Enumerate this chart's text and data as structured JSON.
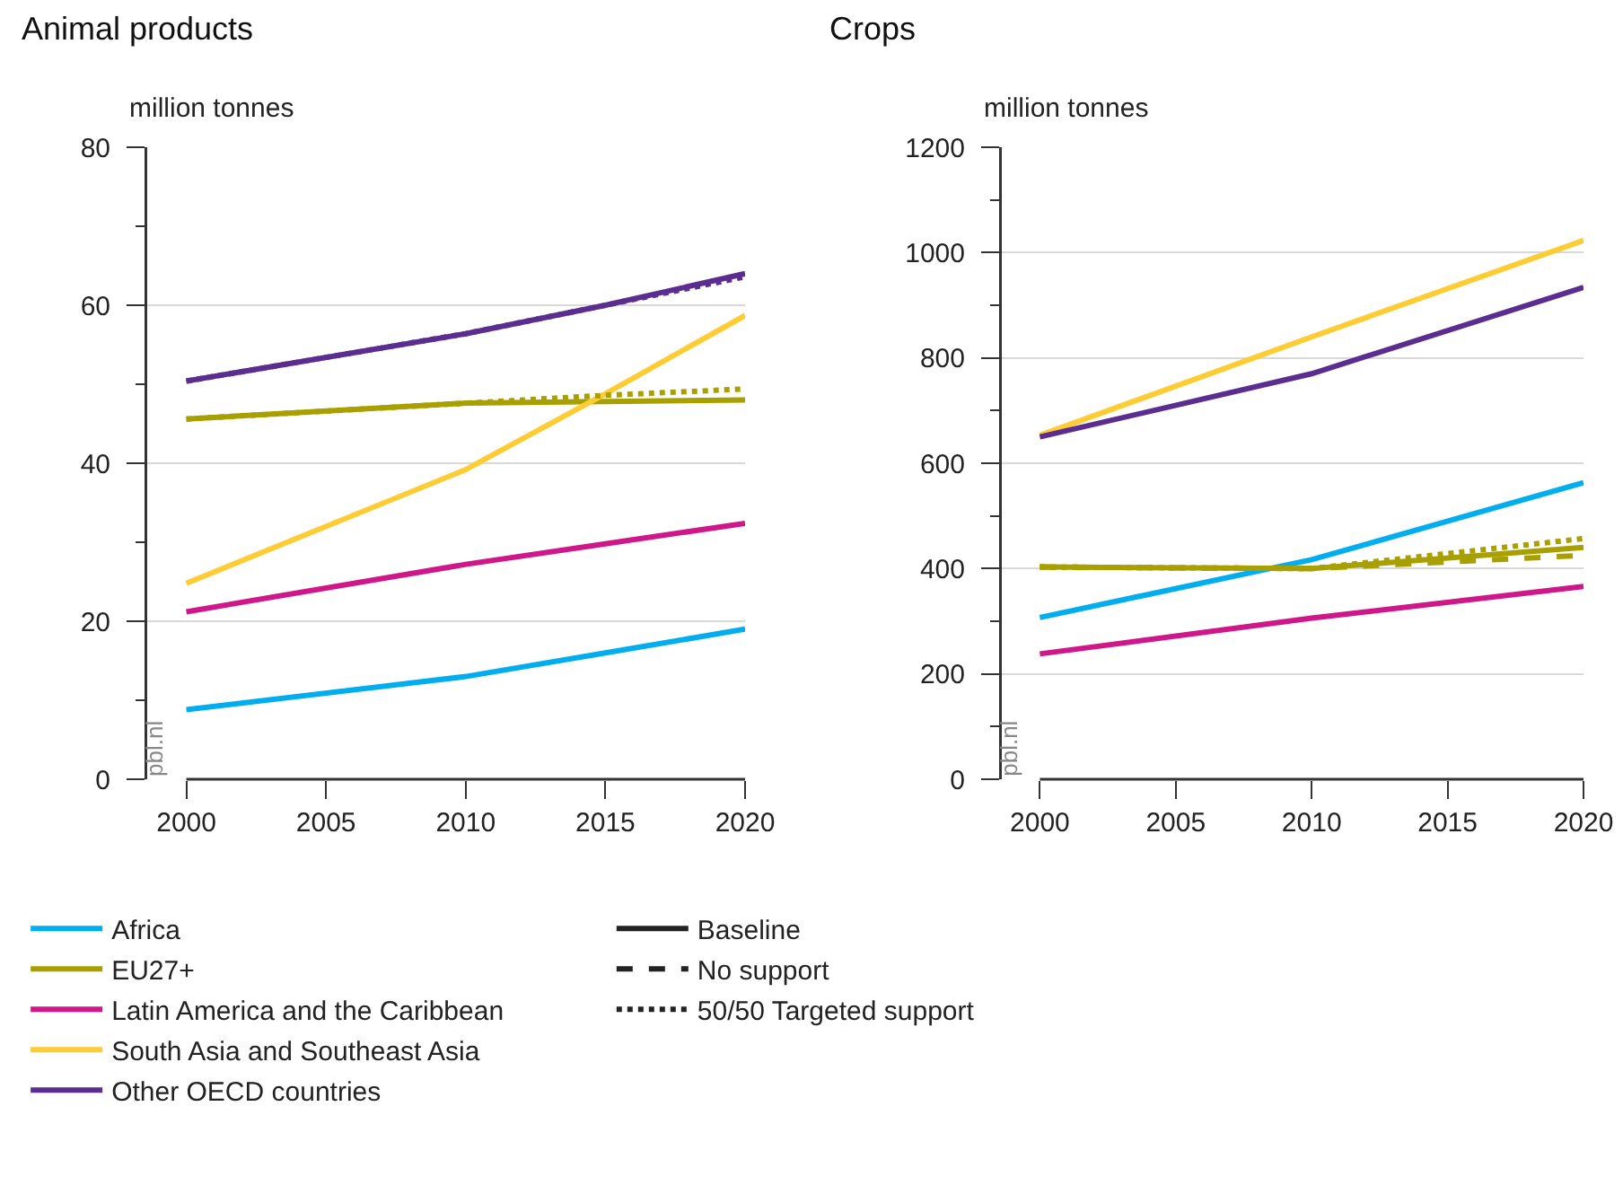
{
  "chart_data": [
    {
      "type": "line",
      "title": "Animal products",
      "ylabel": "million tonnes",
      "x": [
        2000,
        2010,
        2015,
        2020
      ],
      "xlim": [
        1998.6,
        2020
      ],
      "xticks": [
        2000,
        2005,
        2010,
        2015,
        2020
      ],
      "ylim": [
        0,
        80
      ],
      "yticks": [
        0,
        {
          "value": 10,
          "label": null
        },
        20,
        {
          "value": 30,
          "label": null
        },
        40,
        {
          "value": 50,
          "label": null
        },
        60,
        {
          "value": 70,
          "label": null
        },
        80
      ],
      "grid": "y",
      "legend": "bottom",
      "marker": "none",
      "annotations": [
        "pbl.nl"
      ],
      "series": [
        {
          "name": "Africa",
          "color": "#00aeef",
          "line_style": "solid",
          "values": [
            8.8,
            13,
            16,
            19
          ]
        },
        {
          "name": "EU27+",
          "color": "#a8a000",
          "line_style": "solid",
          "values": [
            45.6,
            47.6,
            47.8,
            48
          ]
        },
        {
          "name": "Latin America and the Caribbean",
          "color": "#d0178a",
          "line_style": "solid",
          "values": [
            21.2,
            27.2,
            29.8,
            32.4
          ]
        },
        {
          "name": "South Asia and Southeast Asia",
          "color": "#ffcc33",
          "line_style": "solid",
          "values": [
            24.8,
            39.2,
            48.8,
            58.7
          ]
        },
        {
          "name": "Other OECD countries",
          "color": "#5c2d91",
          "line_style": "solid",
          "values": [
            50.4,
            56.4,
            60,
            64
          ]
        },
        {
          "color": "#a8a000",
          "line_style": "dotted",
          "values": [
            45.6,
            47.6,
            48.6,
            49.4
          ]
        },
        {
          "color": "#5c2d91",
          "line_style": "dotted",
          "values": [
            50.4,
            56.4,
            60,
            63.6
          ]
        },
        {
          "name": "Baseline",
          "color": "#222222",
          "line_style": "solid",
          "values": [
            null,
            null,
            null,
            null
          ]
        },
        {
          "name": "No support",
          "color": "#222222",
          "line_style": "dashed",
          "values": [
            null,
            null,
            null,
            null
          ]
        },
        {
          "name": "50/50 Targeted support",
          "color": "#222222",
          "line_style": "dotted",
          "values": [
            null,
            null,
            null,
            null
          ]
        }
      ]
    },
    {
      "type": "line",
      "title": "Crops",
      "ylabel": "million tonnes",
      "x": [
        2000,
        2010,
        2020
      ],
      "xlim": [
        1998.6,
        2020
      ],
      "xticks": [
        2000,
        2005,
        2010,
        2015,
        2020
      ],
      "ylim": [
        0,
        1200
      ],
      "yticks": [
        0,
        {
          "value": 100,
          "label": null
        },
        200,
        {
          "value": 300,
          "label": null
        },
        400,
        {
          "value": 500,
          "label": null
        },
        600,
        {
          "value": 700,
          "label": null
        },
        800,
        {
          "value": 900,
          "label": null
        },
        1000,
        {
          "value": 1100,
          "label": null
        },
        1200
      ],
      "grid": "y",
      "marker": "none",
      "annotations": [
        "pbl.nl"
      ],
      "series": [
        {
          "color": "#00aeef",
          "line_style": "solid",
          "values": [
            307,
            417,
            563
          ]
        },
        {
          "color": "#a8a000",
          "line_style": "solid",
          "values": [
            403,
            400,
            440
          ]
        },
        {
          "color": "#d0178a",
          "line_style": "solid",
          "values": [
            238,
            306,
            366
          ]
        },
        {
          "color": "#ffcc33",
          "line_style": "solid",
          "values": [
            653,
            840,
            1023
          ]
        },
        {
          "color": "#5c2d91",
          "line_style": "solid",
          "values": [
            650,
            770,
            934
          ]
        },
        {
          "color": "#a8a000",
          "line_style": "dashed",
          "values": [
            403,
            400,
            425
          ]
        },
        {
          "color": "#a8a000",
          "line_style": "dotted",
          "values": [
            403,
            400,
            457
          ]
        }
      ]
    }
  ]
}
